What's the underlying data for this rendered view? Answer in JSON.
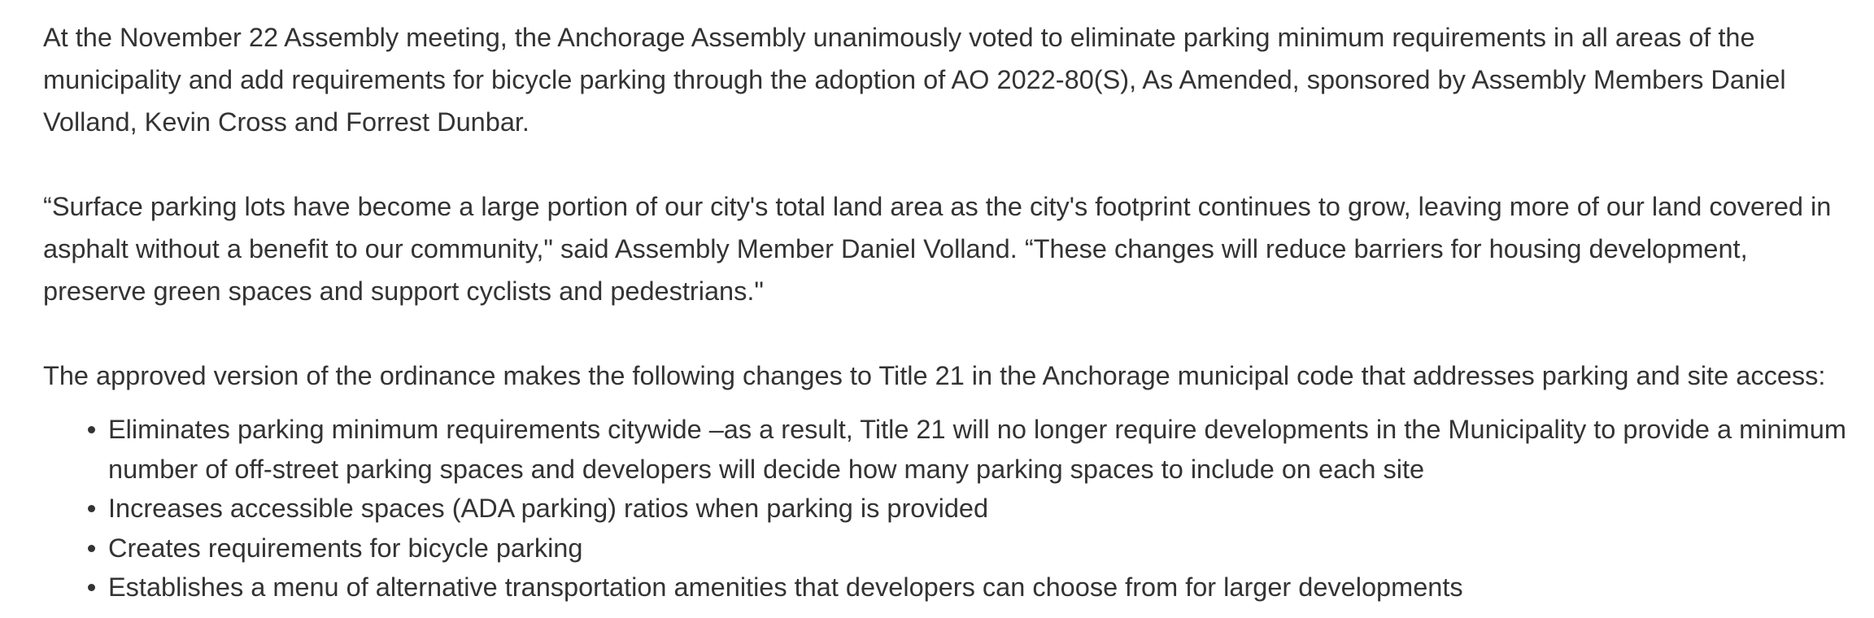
{
  "article": {
    "paragraphs": [
      "At the November 22 Assembly meeting, the Anchorage Assembly unanimously voted to eliminate parking minimum requirements in all areas of the municipality and add requirements for bicycle parking through the adoption of AO 2022-80(S), As Amended, sponsored by Assembly Members Daniel Volland, Kevin Cross and Forrest Dunbar.",
      "“Surface parking lots have become a large portion of our city's total land area as the city's footprint continues to grow, leaving more of our land covered in asphalt without a benefit to our community,\" said Assembly Member Daniel Volland. “These changes will reduce barriers for housing development, preserve green spaces and support cyclists and pedestrians.\"",
      "The approved version of the ordinance makes the following changes to Title 21 in the Anchorage municipal code that addresses parking and site access:"
    ],
    "changes": [
      "Eliminates parking minimum requirements citywide –as a result, Title 21 will no longer require developments in the Municipality to provide a minimum number of off-street parking spaces and developers will decide how many parking spaces to include on each site",
      "Increases accessible spaces (ADA parking) ratios when parking is provided",
      "Creates requirements for bicycle parking",
      "Establishes a menu of alternative transportation amenities that developers can choose from for larger developments"
    ]
  }
}
